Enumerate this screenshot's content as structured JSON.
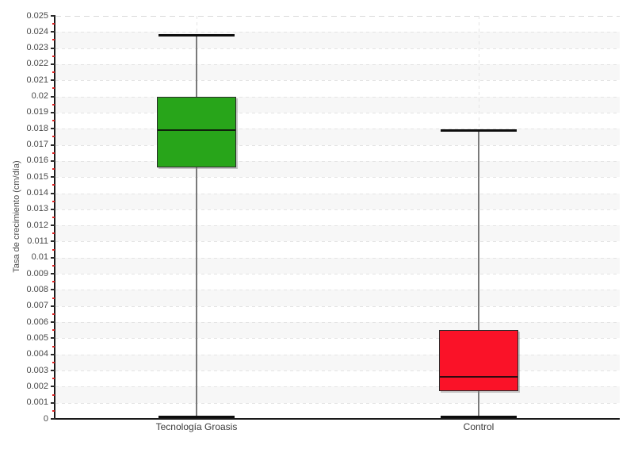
{
  "chart_data": {
    "type": "box",
    "title": "",
    "xlabel": "",
    "ylabel": "Tasa de crecimiento (cm/día)",
    "ylim": [
      0,
      0.025
    ],
    "ytick_step": 0.001,
    "ytick_minor_step": 0.0005,
    "ytick_labels": [
      "0",
      "0.001",
      "0.002",
      "0.003",
      "0.004",
      "0.005",
      "0.006",
      "0.007",
      "0.008",
      "0.009",
      "0.01",
      "0.011",
      "0.012",
      "0.013",
      "0.014",
      "0.015",
      "0.016",
      "0.017",
      "0.018",
      "0.019",
      "0.02",
      "0.021",
      "0.022",
      "0.023",
      "0.024",
      "0.025"
    ],
    "grid": "horizontal dashed gridlines each 0.001, alternating gray row bands, dashed vertical gridline at each category center",
    "legend": "none",
    "categories": [
      "Tecnología Groasis",
      "Control"
    ],
    "series": [
      {
        "name": "Tecnología Groasis",
        "color": "#28a51a",
        "min": 0.0001,
        "q1": 0.0156,
        "median": 0.0179,
        "q3": 0.02,
        "max": 0.0238
      },
      {
        "name": "Control",
        "color": "#fa1228",
        "min": 0.0001,
        "q1": 0.0017,
        "median": 0.0026,
        "q3": 0.0055,
        "max": 0.0179
      }
    ],
    "style_colors": {
      "band_gray": "#f7f7f7",
      "gridline": "#e4e4e4",
      "axis": "#1a1a1a",
      "whisker": "#7a7a7a",
      "whisker_cap": "#0d0d0d",
      "minor_tick": "#e12525",
      "text": "#4a4a4a"
    }
  }
}
